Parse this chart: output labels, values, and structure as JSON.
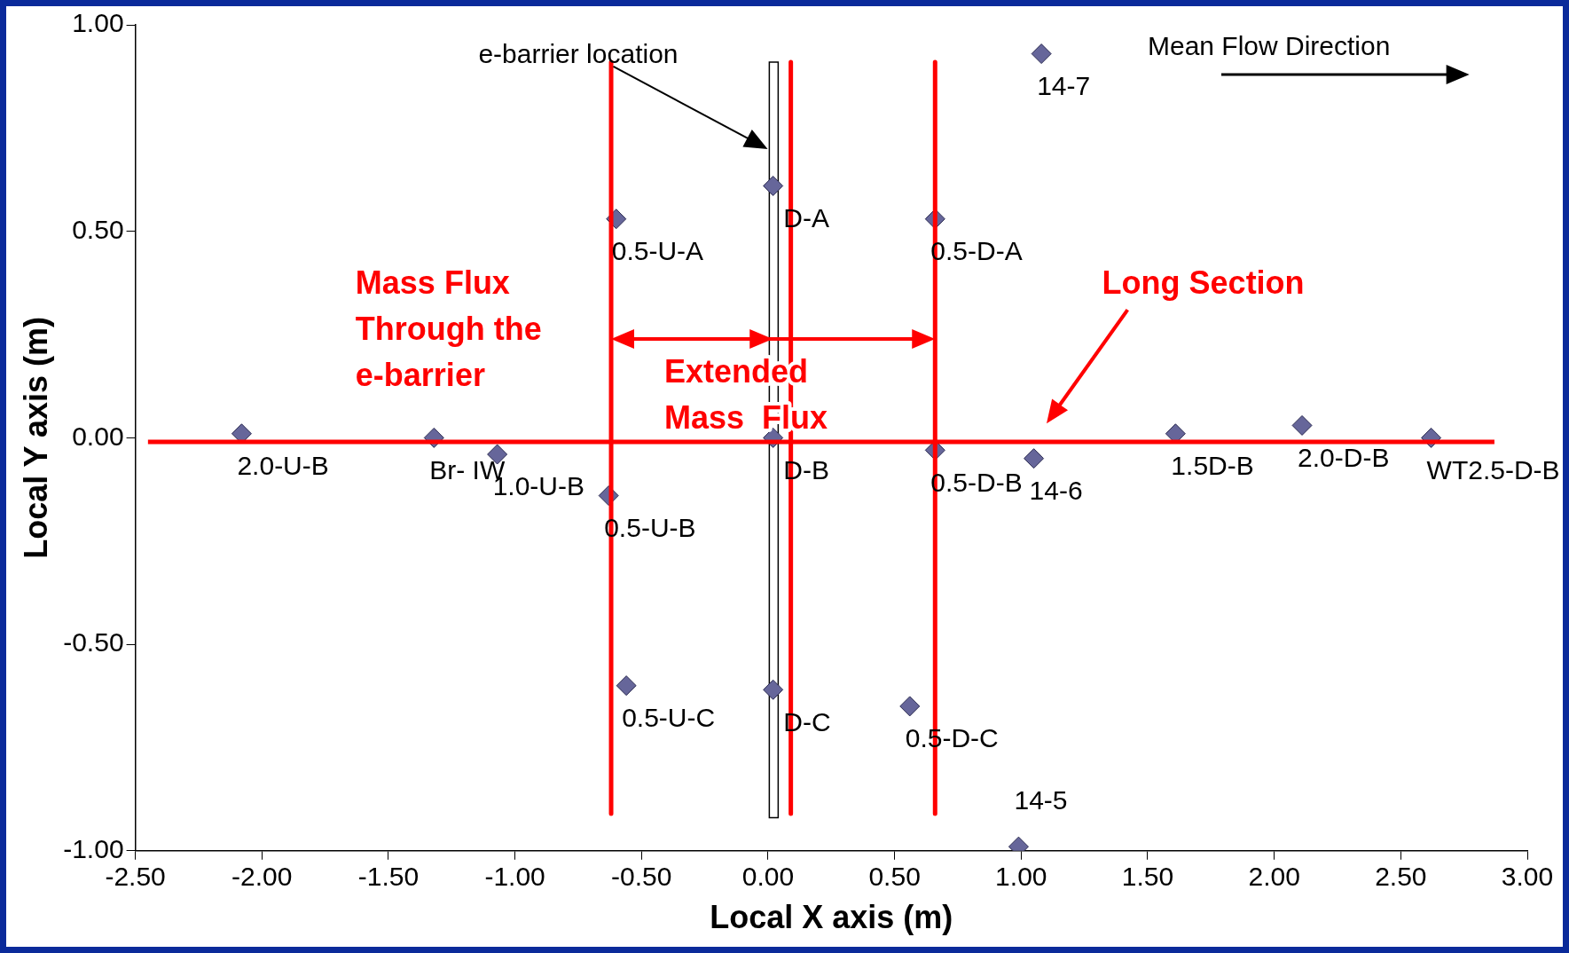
{
  "chart_data": {
    "type": "scatter",
    "xlabel": "Local X axis (m)",
    "ylabel": "Local Y axis (m)",
    "xlim": [
      -2.5,
      3.0
    ],
    "ylim": [
      -1.0,
      1.0
    ],
    "xticks": [
      {
        "value": -2.5,
        "label": "-2.50"
      },
      {
        "value": -2.0,
        "label": "-2.00"
      },
      {
        "value": -1.5,
        "label": "-1.50"
      },
      {
        "value": -1.0,
        "label": "-1.00"
      },
      {
        "value": -0.5,
        "label": "-0.50"
      },
      {
        "value": 0,
        "label": "0.00"
      },
      {
        "value": 0.5,
        "label": "0.50"
      },
      {
        "value": 1.0,
        "label": "1.00"
      },
      {
        "value": 1.5,
        "label": "1.50"
      },
      {
        "value": 2.0,
        "label": "2.00"
      },
      {
        "value": 2.5,
        "label": "2.50"
      },
      {
        "value": 3.0,
        "label": "3.00"
      }
    ],
    "yticks": [
      {
        "value": -1.0,
        "label": "-1.00"
      },
      {
        "value": -0.5,
        "label": "-0.50"
      },
      {
        "value": 0,
        "label": "0.00"
      },
      {
        "value": 0.5,
        "label": "0.50"
      },
      {
        "value": 1.0,
        "label": "1.00"
      }
    ],
    "series": [
      {
        "type": "line",
        "color": "#ff0000",
        "marker": "none",
        "x": [
          -2.45,
          2.87
        ],
        "values": [
          -0.01,
          -0.01
        ]
      },
      {
        "type": "line",
        "color": "#ff0000",
        "marker": "none",
        "x": [
          -0.62,
          -0.62
        ],
        "values": [
          0.91,
          -0.91
        ]
      },
      {
        "type": "line",
        "color": "#ff0000",
        "marker": "none",
        "x": [
          0.09,
          0.09
        ],
        "values": [
          0.91,
          -0.91
        ]
      },
      {
        "type": "line",
        "color": "#ff0000",
        "marker": "none",
        "x": [
          0.66,
          0.66
        ],
        "values": [
          0.91,
          -0.91
        ]
      },
      {
        "color": "#66669a",
        "marker": "diamond",
        "x": [
          -2.08,
          -1.32,
          -1.07,
          -0.63,
          -0.6,
          -0.56,
          0.02,
          0.02,
          0.02,
          0.66,
          0.66,
          0.56,
          1.08,
          1.05,
          0.99,
          1.61,
          2.11,
          2.62
        ],
        "values": [
          0.01,
          0.0,
          -0.04,
          -0.14,
          0.53,
          -0.6,
          0.61,
          0.0,
          -0.61,
          0.53,
          -0.03,
          -0.65,
          0.93,
          -0.05,
          -0.99,
          0.01,
          0.03,
          0.0
        ]
      }
    ],
    "annotations": [
      "e-barrier location",
      "Mean Flow Direction",
      "Mass Flux\nThrough the\ne-barrier",
      "Extended\nMass  Flux",
      "Long Section",
      {
        "text": "2.0-U-B",
        "x": -2.08,
        "y": 0.01
      },
      {
        "text": "Br- IW",
        "x": -1.32,
        "y": 0.0
      },
      {
        "text": "1.0-U-B",
        "x": -1.07,
        "y": -0.04
      },
      {
        "text": "0.5-U-B",
        "x": -0.63,
        "y": -0.14
      },
      {
        "text": "0.5-U-A",
        "x": -0.6,
        "y": 0.53
      },
      {
        "text": "0.5-U-C",
        "x": -0.56,
        "y": -0.6
      },
      {
        "text": "D-A",
        "x": 0.02,
        "y": 0.61
      },
      {
        "text": "D-B",
        "x": 0.02,
        "y": 0.0
      },
      {
        "text": "D-C",
        "x": 0.02,
        "y": -0.61
      },
      {
        "text": "0.5-D-A",
        "x": 0.66,
        "y": 0.53
      },
      {
        "text": "0.5-D-B",
        "x": 0.66,
        "y": -0.03
      },
      {
        "text": "0.5-D-C",
        "x": 0.56,
        "y": -0.65
      },
      {
        "text": "14-7",
        "x": 1.08,
        "y": 0.93
      },
      {
        "text": "14-6",
        "x": 1.05,
        "y": -0.05
      },
      {
        "text": "14-5",
        "x": 0.99,
        "y": -0.99
      },
      {
        "text": "1.5D-B",
        "x": 1.61,
        "y": 0.01
      },
      {
        "text": "2.0-D-B",
        "x": 2.11,
        "y": 0.03
      },
      {
        "text": "WT2.5-D-B",
        "x": 2.62,
        "y": 0.0
      }
    ]
  }
}
